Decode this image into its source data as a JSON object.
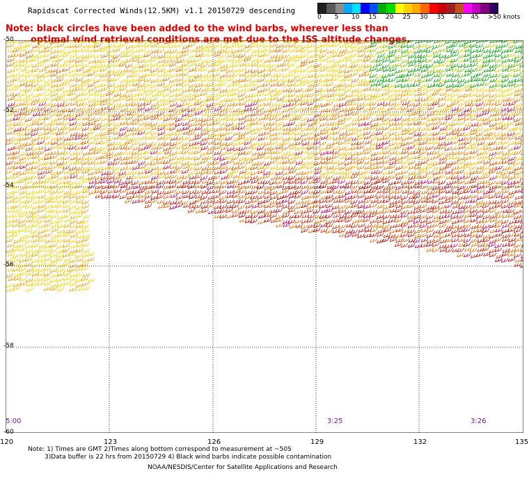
{
  "header": {
    "title": "Rapidscat Corrected Winds(12.5KM) v1.1 20150729 descending",
    "note_line1": "Note: black circles have been added to the wind barbs, wherever less than",
    "note_line2": "optimal wind retrieval conditions are met due to the ISS altitude changes."
  },
  "legend": {
    "labels": [
      "0",
      "5",
      "10",
      "15",
      "20",
      "25",
      "30",
      "35",
      "40",
      "45",
      ">50 knots"
    ],
    "colors": [
      "#202020",
      "#5a5a5a",
      "#8c8c8c",
      "#00aaff",
      "#00e0ff",
      "#0000ff",
      "#0050ff",
      "#00b000",
      "#00e000",
      "#ffff00",
      "#ffd000",
      "#ffaa00",
      "#ff6600",
      "#ff0000",
      "#cc0000",
      "#a02020",
      "#c05020",
      "#ff00ff",
      "#c000c0",
      "#800080",
      "#300060"
    ]
  },
  "axes": {
    "lat_labels": [
      "-50",
      "-52",
      "-54",
      "-56",
      "-58",
      "-60"
    ],
    "lon_labels": [
      "120",
      "123",
      "126",
      "129",
      "132",
      "135"
    ]
  },
  "times": [
    "5:00",
    "3:25",
    "3:26"
  ],
  "footer": {
    "note_line1": "Note: 1) Times are GMT 2)Times along bottom correspond to measurement at ~50S",
    "note_line2": "3)Data buffer is 22 hrs from 20150729 4) Black wind barbs indicate possible contamination",
    "credit": "NOAA/NESDIS/Center for Satellite Applications and Research"
  }
}
